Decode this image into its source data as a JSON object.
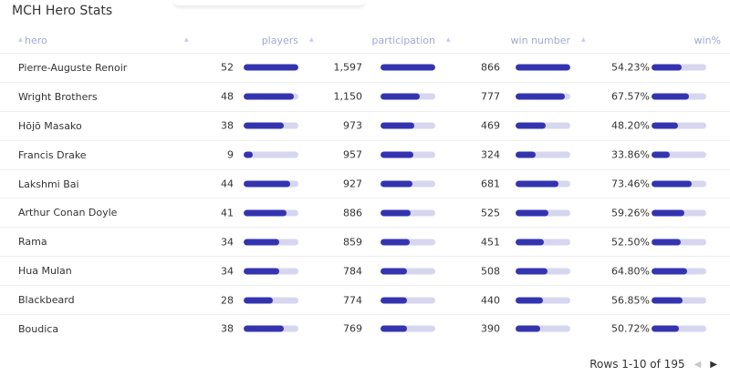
{
  "title": "MCH Hero Stats",
  "columns": [
    {
      "label": "hero"
    },
    {
      "label": "players"
    },
    {
      "label": "participation"
    },
    {
      "label": "win number"
    },
    {
      "label": "win%"
    }
  ],
  "rows": [
    {
      "hero": "Pierre-Auguste Renoir",
      "players": "52",
      "participation": "1,597",
      "win_number": "866",
      "win_pct": "54.23%",
      "players_frac": 1.0,
      "participation_frac": 1.0,
      "win_number_frac": 1.0,
      "win_pct_frac": 0.542
    },
    {
      "hero": "Wright Brothers",
      "players": "48",
      "participation": "1,150",
      "win_number": "777",
      "win_pct": "67.57%",
      "players_frac": 0.923,
      "participation_frac": 0.72,
      "win_number_frac": 0.897,
      "win_pct_frac": 0.676
    },
    {
      "hero": "Hōjō Masako",
      "players": "38",
      "participation": "973",
      "win_number": "469",
      "win_pct": "48.20%",
      "players_frac": 0.731,
      "participation_frac": 0.609,
      "win_number_frac": 0.542,
      "win_pct_frac": 0.482
    },
    {
      "hero": "Francis Drake",
      "players": "9",
      "participation": "957",
      "win_number": "324",
      "win_pct": "33.86%",
      "players_frac": 0.173,
      "participation_frac": 0.599,
      "win_number_frac": 0.374,
      "win_pct_frac": 0.339
    },
    {
      "hero": "Lakshmi Bai",
      "players": "44",
      "participation": "927",
      "win_number": "681",
      "win_pct": "73.46%",
      "players_frac": 0.846,
      "participation_frac": 0.58,
      "win_number_frac": 0.786,
      "win_pct_frac": 0.735
    },
    {
      "hero": "Arthur Conan Doyle",
      "players": "41",
      "participation": "886",
      "win_number": "525",
      "win_pct": "59.26%",
      "players_frac": 0.788,
      "participation_frac": 0.555,
      "win_number_frac": 0.606,
      "win_pct_frac": 0.593
    },
    {
      "hero": "Rama",
      "players": "34",
      "participation": "859",
      "win_number": "451",
      "win_pct": "52.50%",
      "players_frac": 0.654,
      "participation_frac": 0.538,
      "win_number_frac": 0.521,
      "win_pct_frac": 0.525
    },
    {
      "hero": "Hua Mulan",
      "players": "34",
      "participation": "784",
      "win_number": "508",
      "win_pct": "64.80%",
      "players_frac": 0.654,
      "participation_frac": 0.491,
      "win_number_frac": 0.587,
      "win_pct_frac": 0.648
    },
    {
      "hero": "Blackbeard",
      "players": "28",
      "participation": "774",
      "win_number": "440",
      "win_pct": "56.85%",
      "players_frac": 0.538,
      "participation_frac": 0.485,
      "win_number_frac": 0.508,
      "win_pct_frac": 0.569
    },
    {
      "hero": "Boudica",
      "players": "38",
      "participation": "769",
      "win_number": "390",
      "win_pct": "50.72%",
      "players_frac": 0.731,
      "participation_frac": 0.482,
      "win_number_frac": 0.45,
      "win_pct_frac": 0.507
    }
  ],
  "footer": {
    "rows_text": "Rows 1-10 of 195"
  },
  "icons": {
    "sort": "sort-caret-icon",
    "prev": "chevron-left-icon",
    "next": "chevron-right-icon"
  },
  "colors": {
    "bar_fill": "#3434b0",
    "bar_track": "#d6d6ef",
    "header_text": "#a3a7d6"
  }
}
